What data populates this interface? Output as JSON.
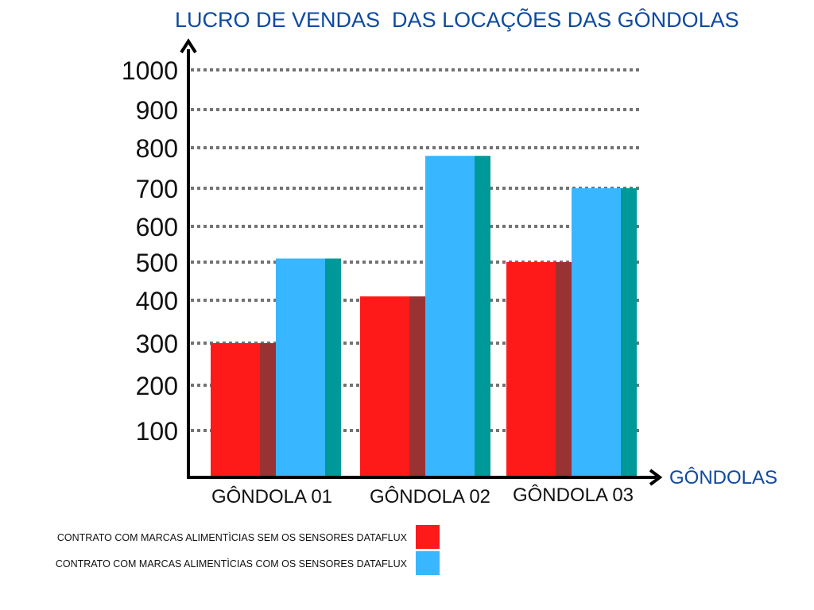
{
  "chart_data": {
    "type": "bar",
    "title": "LUCRO DE VENDAS  DAS LOCAÇÕES DAS GÔNDOLAS",
    "xlabel": "GÔNDOLAS",
    "ylabel": "",
    "categories": [
      "GÔNDOLA 01",
      "GÔNDOLA 02",
      "GÔNDOLA 03"
    ],
    "y_ticks": [
      100,
      200,
      300,
      400,
      500,
      600,
      700,
      800,
      900,
      1000
    ],
    "ylim": [
      0,
      1000
    ],
    "grid": true,
    "legend_position": "bottom-left",
    "series": [
      {
        "name": "CONTRATO COM MARCAS ALIMENTÌCIAS SEM OS SENSORES DATAFLUX",
        "values": [
          300,
          410,
          500
        ],
        "color": "#ff1a1a",
        "shade": "#993333"
      },
      {
        "name": "CONTRATO COM MARCAS ALIMENTÌCIAS COM OS SENSORES DATAFLUX",
        "values": [
          510,
          780,
          700
        ],
        "color": "#38b6ff",
        "shade": "#009999"
      }
    ],
    "colors": {
      "title": "#0e4aa0",
      "axis": "#000000",
      "grid": "#737373"
    }
  }
}
